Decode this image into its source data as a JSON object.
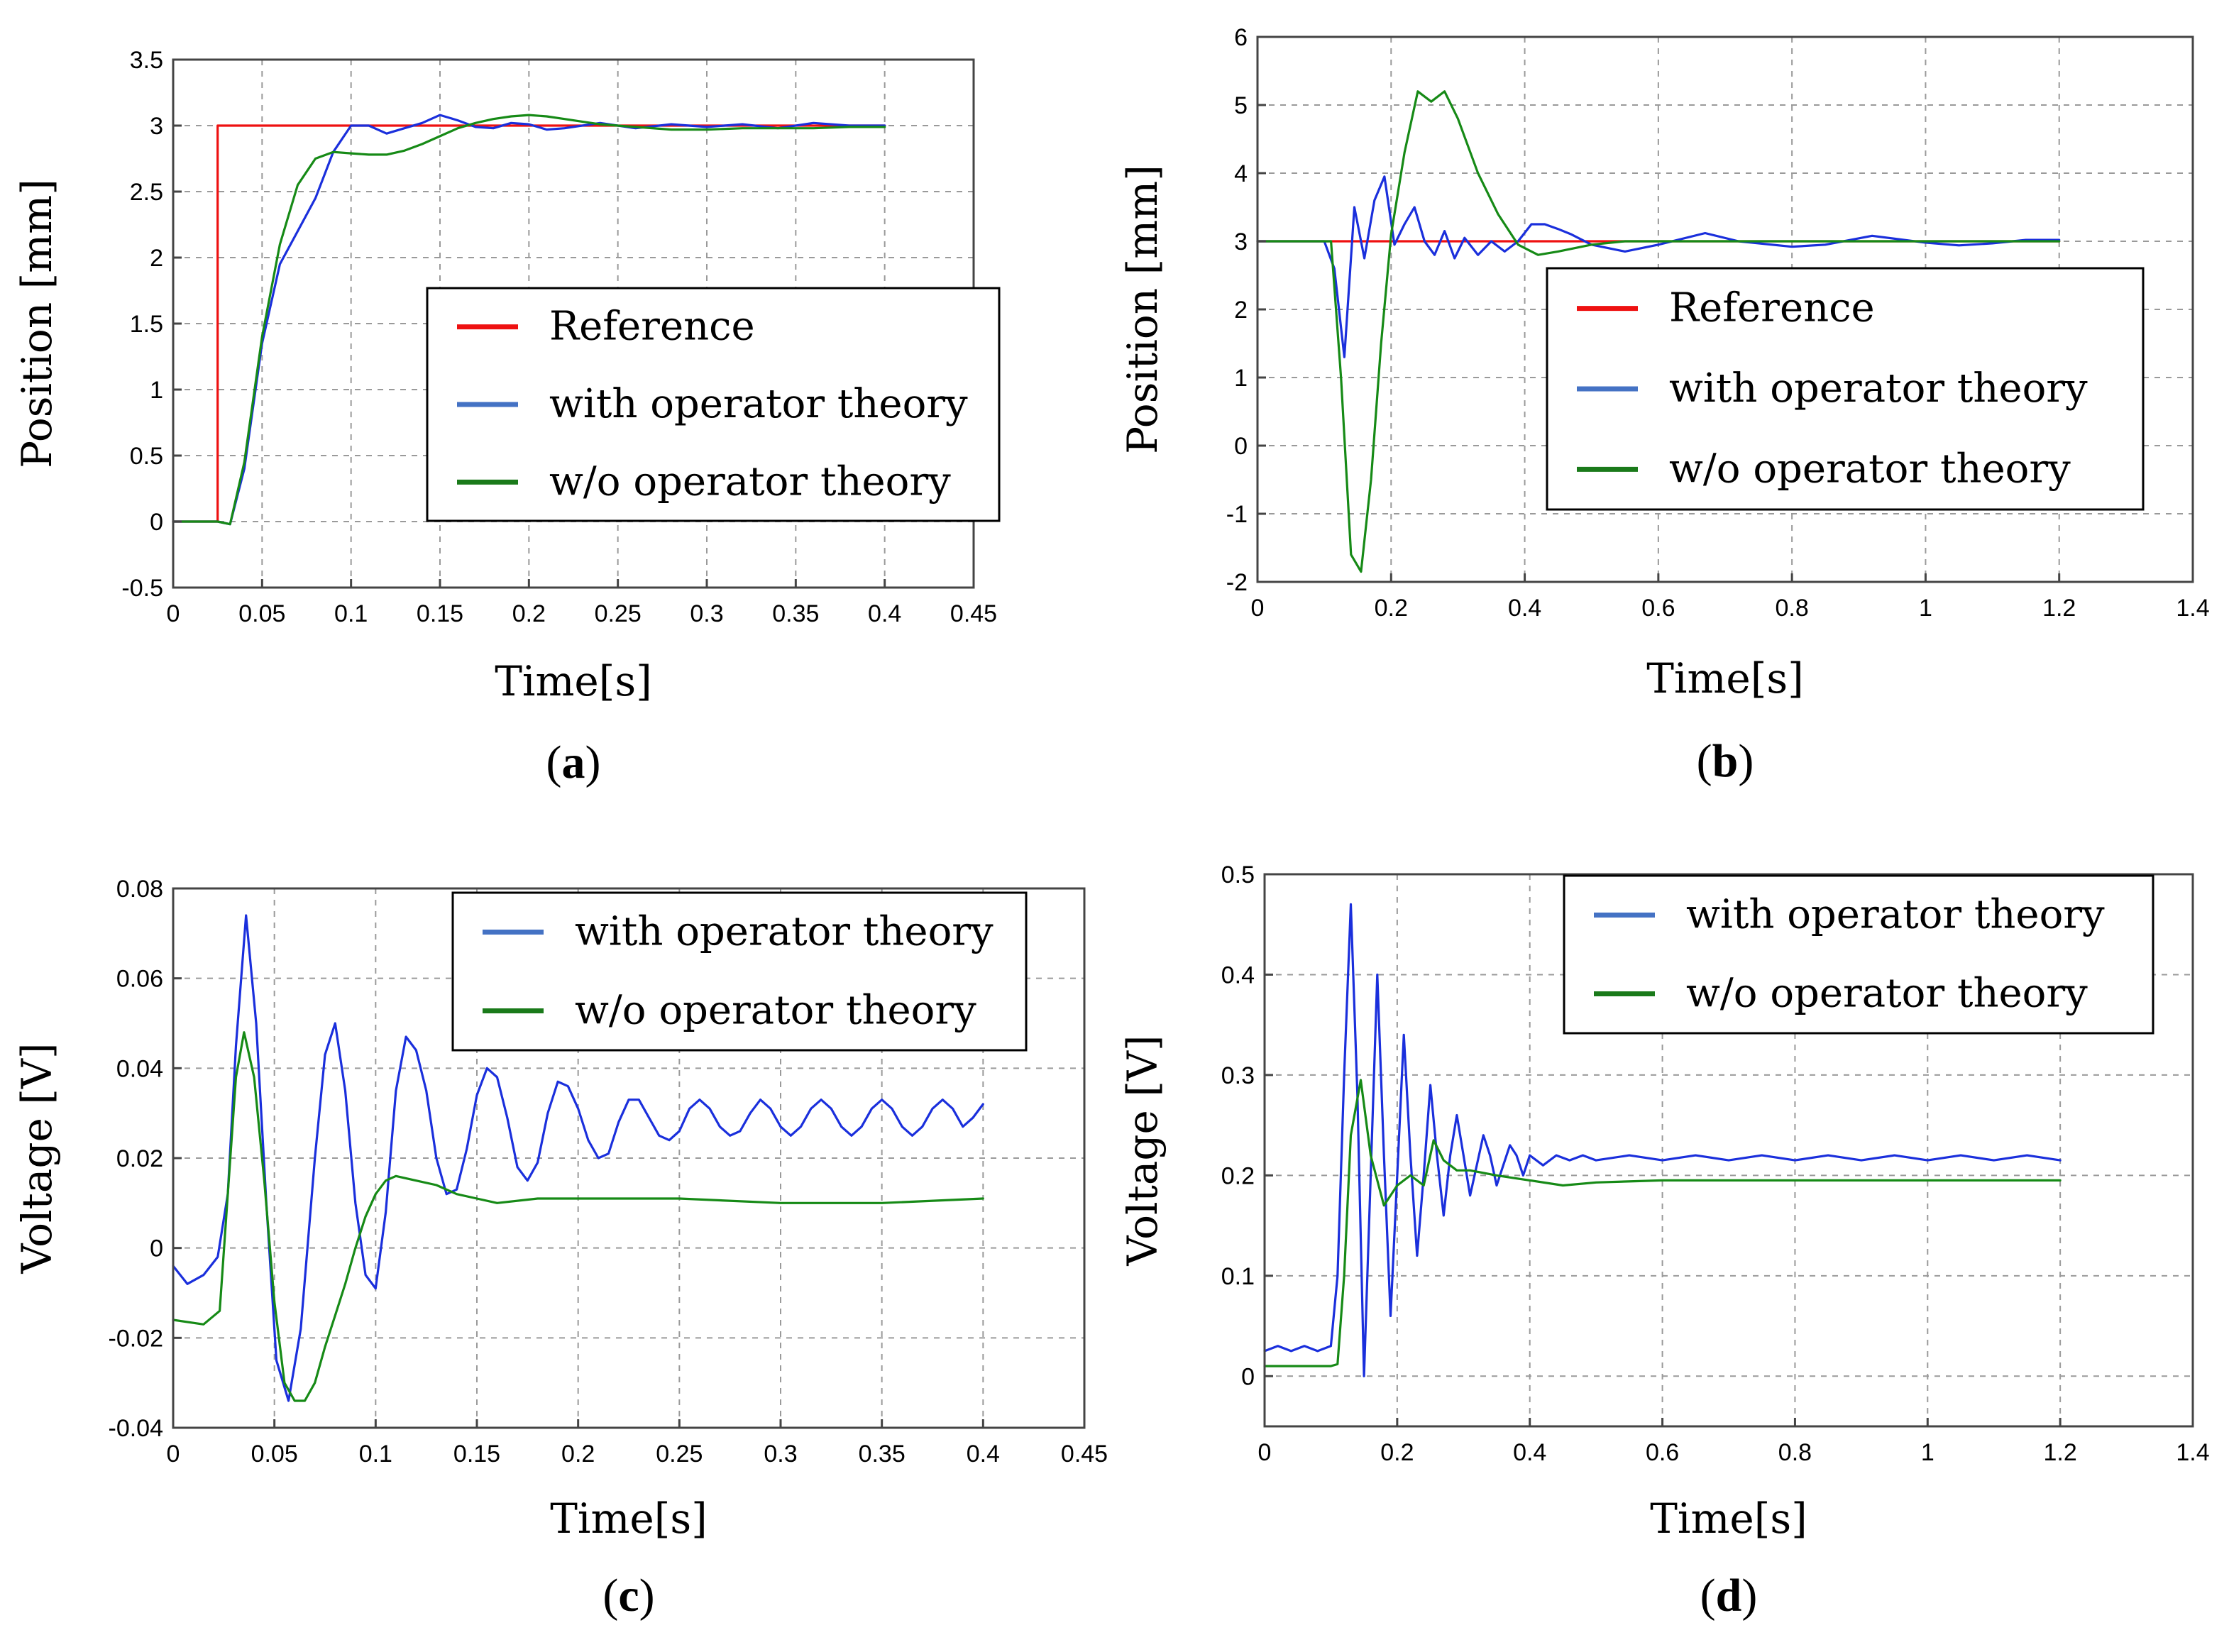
{
  "colors": {
    "reference": "#ee1111",
    "with": "#1a2fdc",
    "without": "#168a16",
    "legend_with": "#4472c4",
    "legend_without": "#1a7a1a"
  },
  "chart_data": [
    {
      "panel": "(a)",
      "type": "line",
      "xlabel": "Time[s]",
      "ylabel": "Position [mm]",
      "xlim": [
        0,
        0.45
      ],
      "ylim": [
        -0.5,
        3.5
      ],
      "xticks": [
        0,
        0.05,
        0.1,
        0.15,
        0.2,
        0.25,
        0.3,
        0.35,
        0.4,
        0.45
      ],
      "yticks": [
        -0.5,
        0,
        0.5,
        1,
        1.5,
        2,
        2.5,
        3,
        3.5
      ],
      "xtick_labels": [
        "0",
        "0.05",
        "0.1",
        "0.15",
        "0.2",
        "0.25",
        "0.3",
        "0.35",
        "0.4",
        "0.45"
      ],
      "ytick_labels": [
        "-0.5",
        "0",
        "0.5",
        "1",
        "1.5",
        "2",
        "2.5",
        "3",
        "3.5"
      ],
      "grid": true,
      "legend_placement": "center-right",
      "series": [
        {
          "name": "Reference",
          "color_key": "reference",
          "x": [
            0,
            0.025,
            0.025,
            0.4
          ],
          "y": [
            0,
            0,
            3,
            3
          ]
        },
        {
          "name": "with operator theory",
          "color_key": "with",
          "x": [
            0,
            0.025,
            0.032,
            0.04,
            0.05,
            0.06,
            0.07,
            0.08,
            0.09,
            0.1,
            0.11,
            0.12,
            0.13,
            0.14,
            0.15,
            0.16,
            0.17,
            0.18,
            0.19,
            0.2,
            0.21,
            0.22,
            0.24,
            0.26,
            0.28,
            0.3,
            0.32,
            0.34,
            0.36,
            0.38,
            0.4
          ],
          "y": [
            0,
            0,
            -0.02,
            0.4,
            1.35,
            1.95,
            2.2,
            2.45,
            2.8,
            3.0,
            3.0,
            2.94,
            2.98,
            3.02,
            3.08,
            3.04,
            2.99,
            2.98,
            3.02,
            3.01,
            2.97,
            2.98,
            3.02,
            2.98,
            3.01,
            2.99,
            3.01,
            2.98,
            3.02,
            3.0,
            3.0
          ]
        },
        {
          "name": "w/o operator theory",
          "color_key": "without",
          "x": [
            0,
            0.025,
            0.032,
            0.04,
            0.05,
            0.06,
            0.07,
            0.08,
            0.09,
            0.1,
            0.11,
            0.12,
            0.13,
            0.14,
            0.15,
            0.16,
            0.17,
            0.18,
            0.19,
            0.2,
            0.21,
            0.22,
            0.23,
            0.24,
            0.26,
            0.28,
            0.3,
            0.32,
            0.34,
            0.36,
            0.38,
            0.4
          ],
          "y": [
            0,
            0,
            -0.02,
            0.45,
            1.4,
            2.1,
            2.55,
            2.75,
            2.8,
            2.79,
            2.78,
            2.78,
            2.81,
            2.86,
            2.92,
            2.98,
            3.02,
            3.05,
            3.07,
            3.08,
            3.07,
            3.05,
            3.03,
            3.01,
            2.99,
            2.97,
            2.97,
            2.98,
            2.98,
            2.98,
            2.99,
            2.99
          ]
        }
      ],
      "legend": [
        {
          "label": "Reference",
          "color_key": "reference"
        },
        {
          "label": "with operator theory",
          "color_key": "legend_with"
        },
        {
          "label": "w/o  operator theory",
          "color_key": "legend_without"
        }
      ]
    },
    {
      "panel": "(b)",
      "type": "line",
      "xlabel": "Time[s]",
      "ylabel": "Position [mm]",
      "xlim": [
        0,
        1.4
      ],
      "ylim": [
        -2,
        6
      ],
      "xticks": [
        0,
        0.2,
        0.4,
        0.6,
        0.8,
        1,
        1.2,
        1.4
      ],
      "yticks": [
        -2,
        -1,
        0,
        1,
        2,
        3,
        4,
        5,
        6
      ],
      "xtick_labels": [
        "0",
        "0.2",
        "0.4",
        "0.6",
        "0.8",
        "1",
        "1.2",
        "1.4"
      ],
      "ytick_labels": [
        "-2",
        "-1",
        "0",
        "1",
        "2",
        "3",
        "4",
        "5",
        "6"
      ],
      "grid": true,
      "legend_placement": "center-right",
      "series": [
        {
          "name": "Reference",
          "color_key": "reference",
          "x": [
            0,
            1.2
          ],
          "y": [
            3,
            3
          ]
        },
        {
          "name": "with operator theory",
          "color_key": "with",
          "x": [
            0,
            0.1,
            0.115,
            0.13,
            0.145,
            0.16,
            0.175,
            0.19,
            0.205,
            0.22,
            0.235,
            0.25,
            0.265,
            0.28,
            0.295,
            0.31,
            0.33,
            0.35,
            0.37,
            0.39,
            0.41,
            0.43,
            0.45,
            0.47,
            0.5,
            0.55,
            0.6,
            0.67,
            0.72,
            0.8,
            0.85,
            0.92,
            1.0,
            1.05,
            1.1,
            1.15,
            1.2
          ],
          "y": [
            3,
            3,
            2.6,
            1.3,
            3.5,
            2.75,
            3.6,
            3.95,
            2.95,
            3.25,
            3.5,
            3.0,
            2.8,
            3.15,
            2.75,
            3.05,
            2.8,
            3.0,
            2.85,
            3.0,
            3.25,
            3.25,
            3.18,
            3.1,
            2.95,
            2.85,
            2.95,
            3.12,
            3.0,
            2.92,
            2.95,
            3.08,
            2.98,
            2.94,
            2.97,
            3.02,
            3.02
          ]
        },
        {
          "name": "w/o operator theory",
          "color_key": "without",
          "x": [
            0,
            0.11,
            0.125,
            0.14,
            0.155,
            0.17,
            0.185,
            0.2,
            0.22,
            0.24,
            0.26,
            0.28,
            0.3,
            0.33,
            0.36,
            0.39,
            0.42,
            0.45,
            0.5,
            0.55,
            0.6,
            0.7,
            0.8,
            0.9,
            1.0,
            1.1,
            1.2
          ],
          "y": [
            3,
            3,
            1.0,
            -1.6,
            -1.85,
            -0.5,
            1.5,
            3.1,
            4.3,
            5.2,
            5.05,
            5.2,
            4.8,
            4.0,
            3.4,
            2.95,
            2.8,
            2.85,
            2.95,
            3.0,
            3.0,
            3.0,
            3.0,
            3.0,
            3.0,
            3.0,
            3.0
          ]
        }
      ],
      "legend": [
        {
          "label": "Reference",
          "color_key": "reference"
        },
        {
          "label": "with operator theory",
          "color_key": "legend_with"
        },
        {
          "label": "w/o  operator theory",
          "color_key": "legend_without"
        }
      ]
    },
    {
      "panel": "(c)",
      "type": "line",
      "xlabel": "Time[s]",
      "ylabel": "Voltage [V]",
      "xlim": [
        0,
        0.45
      ],
      "ylim": [
        -0.04,
        0.08
      ],
      "xticks": [
        0,
        0.05,
        0.1,
        0.15,
        0.2,
        0.25,
        0.3,
        0.35,
        0.4,
        0.45
      ],
      "yticks": [
        -0.04,
        -0.02,
        0,
        0.02,
        0.04,
        0.06,
        0.08
      ],
      "xtick_labels": [
        "0",
        "0.05",
        "0.1",
        "0.15",
        "0.2",
        "0.25",
        "0.3",
        "0.35",
        "0.4",
        "0.45"
      ],
      "ytick_labels": [
        "-0.04",
        "-0.02",
        "0",
        "0.02",
        "0.04",
        "0.06",
        "0.08"
      ],
      "grid": true,
      "legend_placement": "top-right",
      "series": [
        {
          "name": "with operator theory",
          "color_key": "with",
          "x": [
            0,
            0.007,
            0.015,
            0.022,
            0.027,
            0.031,
            0.036,
            0.041,
            0.046,
            0.051,
            0.057,
            0.063,
            0.07,
            0.075,
            0.08,
            0.085,
            0.09,
            0.095,
            0.1,
            0.105,
            0.11,
            0.115,
            0.12,
            0.125,
            0.13,
            0.135,
            0.14,
            0.145,
            0.15,
            0.155,
            0.16,
            0.165,
            0.17,
            0.175,
            0.18,
            0.185,
            0.19,
            0.195,
            0.2,
            0.205,
            0.21,
            0.215,
            0.22,
            0.225,
            0.23,
            0.235,
            0.24,
            0.245,
            0.25,
            0.255,
            0.26,
            0.265,
            0.27,
            0.275,
            0.28,
            0.285,
            0.29,
            0.295,
            0.3,
            0.305,
            0.31,
            0.315,
            0.32,
            0.325,
            0.33,
            0.335,
            0.34,
            0.345,
            0.35,
            0.355,
            0.36,
            0.365,
            0.37,
            0.375,
            0.38,
            0.385,
            0.39,
            0.395,
            0.4
          ],
          "y": [
            -0.004,
            -0.008,
            -0.006,
            -0.002,
            0.012,
            0.045,
            0.074,
            0.05,
            0.01,
            -0.025,
            -0.034,
            -0.018,
            0.02,
            0.043,
            0.05,
            0.035,
            0.01,
            -0.006,
            -0.009,
            0.008,
            0.035,
            0.047,
            0.044,
            0.035,
            0.02,
            0.012,
            0.013,
            0.022,
            0.034,
            0.04,
            0.038,
            0.029,
            0.018,
            0.015,
            0.019,
            0.03,
            0.037,
            0.036,
            0.031,
            0.024,
            0.02,
            0.021,
            0.028,
            0.033,
            0.033,
            0.029,
            0.025,
            0.024,
            0.026,
            0.031,
            0.033,
            0.031,
            0.027,
            0.025,
            0.026,
            0.03,
            0.033,
            0.031,
            0.027,
            0.025,
            0.027,
            0.031,
            0.033,
            0.031,
            0.027,
            0.025,
            0.027,
            0.031,
            0.033,
            0.031,
            0.027,
            0.025,
            0.027,
            0.031,
            0.033,
            0.031,
            0.027,
            0.029,
            0.032
          ]
        },
        {
          "name": "w/o operator theory",
          "color_key": "without",
          "x": [
            0,
            0.015,
            0.023,
            0.027,
            0.031,
            0.035,
            0.04,
            0.045,
            0.05,
            0.055,
            0.06,
            0.065,
            0.07,
            0.075,
            0.08,
            0.085,
            0.09,
            0.095,
            0.1,
            0.105,
            0.11,
            0.12,
            0.13,
            0.14,
            0.15,
            0.16,
            0.18,
            0.2,
            0.22,
            0.25,
            0.3,
            0.35,
            0.4
          ],
          "y": [
            -0.016,
            -0.017,
            -0.014,
            0.012,
            0.038,
            0.048,
            0.038,
            0.015,
            -0.012,
            -0.03,
            -0.034,
            -0.034,
            -0.03,
            -0.022,
            -0.015,
            -0.008,
            0.0,
            0.007,
            0.012,
            0.015,
            0.016,
            0.015,
            0.014,
            0.012,
            0.011,
            0.01,
            0.011,
            0.011,
            0.011,
            0.011,
            0.01,
            0.01,
            0.011
          ]
        }
      ],
      "legend": [
        {
          "label": "with operator theory",
          "color_key": "legend_with"
        },
        {
          "label": "w/o  operator theory",
          "color_key": "legend_without"
        }
      ]
    },
    {
      "panel": "(d)",
      "type": "line",
      "xlabel": "Time[s]",
      "ylabel": "Voltage [V]",
      "xlim": [
        0,
        1.4
      ],
      "ylim": [
        -0.05,
        0.5
      ],
      "xticks": [
        0,
        0.2,
        0.4,
        0.6,
        0.8,
        1,
        1.2,
        1.4
      ],
      "yticks": [
        0,
        0.1,
        0.2,
        0.3,
        0.4,
        0.5
      ],
      "xtick_labels": [
        "0",
        "0.2",
        "0.4",
        "0.6",
        "0.8",
        "1",
        "1.2",
        "1.4"
      ],
      "ytick_labels": [
        "0",
        "0.1",
        "0.2",
        "0.3",
        "0.4",
        "0.5"
      ],
      "grid": true,
      "legend_placement": "top-right",
      "series": [
        {
          "name": "with operator theory",
          "color_key": "with",
          "x": [
            0,
            0.02,
            0.04,
            0.06,
            0.08,
            0.1,
            0.11,
            0.12,
            0.13,
            0.14,
            0.15,
            0.16,
            0.17,
            0.18,
            0.19,
            0.2,
            0.21,
            0.22,
            0.23,
            0.24,
            0.25,
            0.26,
            0.27,
            0.28,
            0.29,
            0.3,
            0.31,
            0.32,
            0.33,
            0.34,
            0.35,
            0.36,
            0.37,
            0.38,
            0.39,
            0.4,
            0.42,
            0.44,
            0.46,
            0.48,
            0.5,
            0.55,
            0.6,
            0.65,
            0.7,
            0.75,
            0.8,
            0.85,
            0.9,
            0.95,
            1.0,
            1.05,
            1.1,
            1.15,
            1.2
          ],
          "y": [
            0.025,
            0.03,
            0.025,
            0.03,
            0.025,
            0.03,
            0.1,
            0.3,
            0.47,
            0.28,
            0.0,
            0.2,
            0.4,
            0.22,
            0.06,
            0.2,
            0.34,
            0.22,
            0.12,
            0.2,
            0.29,
            0.22,
            0.16,
            0.22,
            0.26,
            0.22,
            0.18,
            0.21,
            0.24,
            0.22,
            0.19,
            0.21,
            0.23,
            0.22,
            0.2,
            0.22,
            0.21,
            0.22,
            0.215,
            0.22,
            0.215,
            0.22,
            0.215,
            0.22,
            0.215,
            0.22,
            0.215,
            0.22,
            0.215,
            0.22,
            0.215,
            0.22,
            0.215,
            0.22,
            0.215
          ]
        },
        {
          "name": "w/o operator theory",
          "color_key": "without",
          "x": [
            0,
            0.1,
            0.11,
            0.12,
            0.13,
            0.145,
            0.16,
            0.18,
            0.2,
            0.22,
            0.24,
            0.255,
            0.27,
            0.29,
            0.31,
            0.35,
            0.4,
            0.45,
            0.5,
            0.6,
            0.8,
            1.0,
            1.2
          ],
          "y": [
            0.01,
            0.01,
            0.012,
            0.1,
            0.24,
            0.295,
            0.22,
            0.17,
            0.19,
            0.2,
            0.19,
            0.235,
            0.215,
            0.205,
            0.205,
            0.2,
            0.195,
            0.19,
            0.193,
            0.195,
            0.195,
            0.195,
            0.195
          ]
        }
      ],
      "legend": [
        {
          "label": "with operator theory",
          "color_key": "legend_with"
        },
        {
          "label": "w/o  operator theory",
          "color_key": "legend_without"
        }
      ]
    }
  ]
}
